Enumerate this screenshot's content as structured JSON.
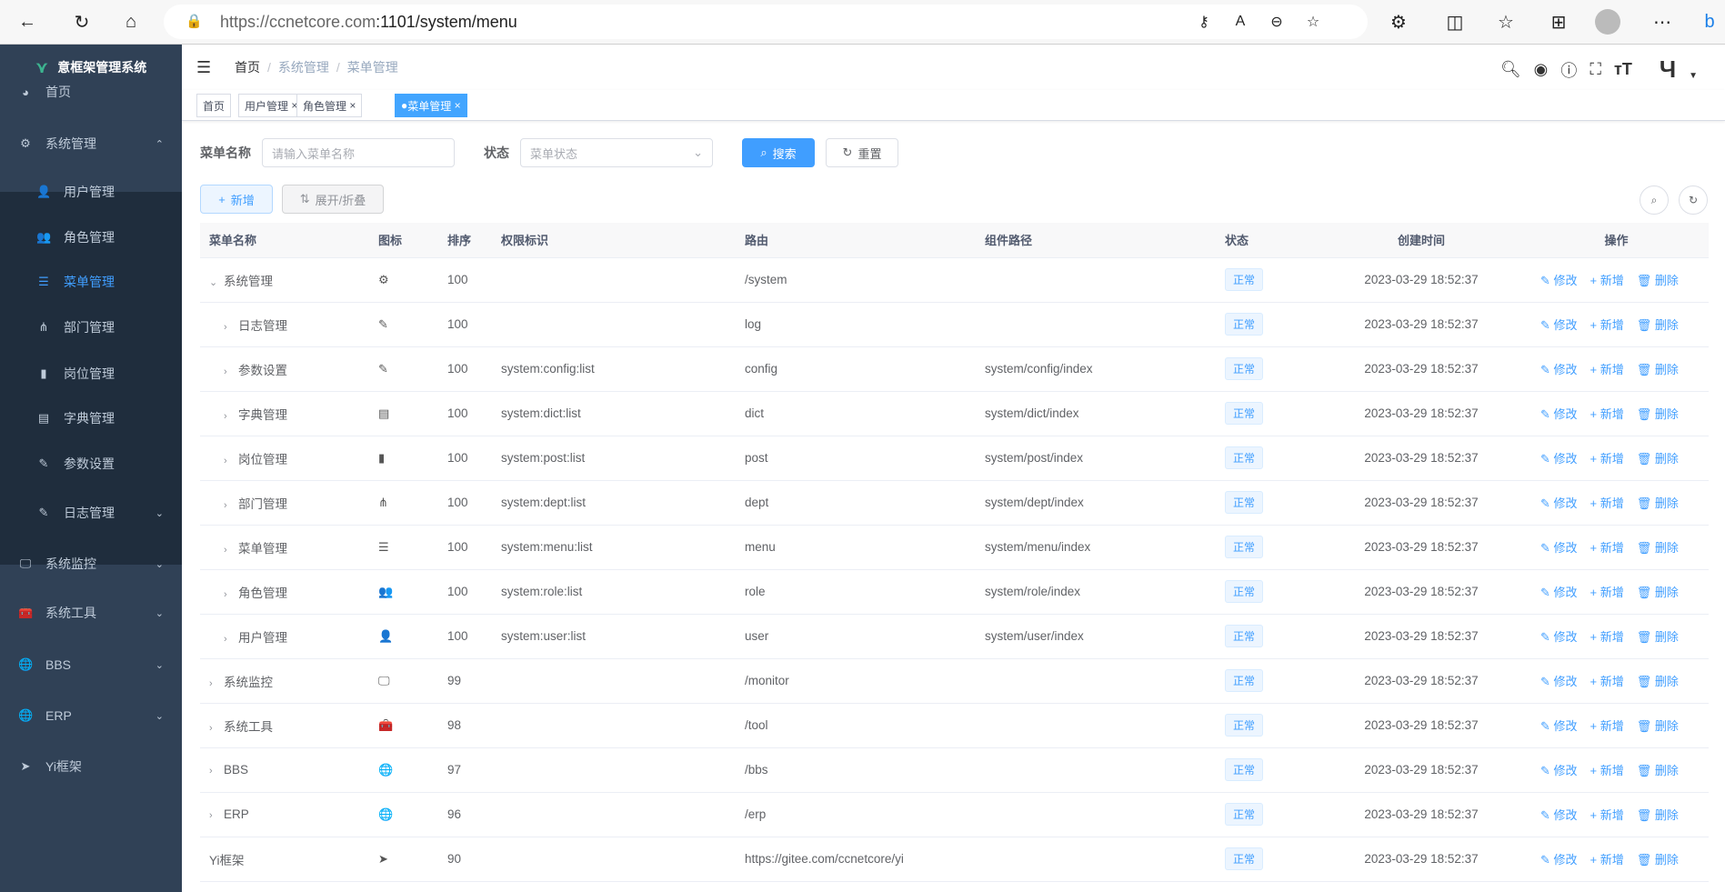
{
  "browser": {
    "url_host": "https://ccnetcore.com",
    "url_rest": ":1101/system/menu"
  },
  "sidebar": {
    "title": "意框架管理系统",
    "items": [
      {
        "label": "首页",
        "icon": "dashboard-icon"
      },
      {
        "label": "系统管理",
        "icon": "gear-icon"
      },
      {
        "label": "用户管理",
        "icon": "user-icon"
      },
      {
        "label": "角色管理",
        "icon": "peoples-icon"
      },
      {
        "label": "菜单管理",
        "icon": "tree-table-icon"
      },
      {
        "label": "部门管理",
        "icon": "tree-icon"
      },
      {
        "label": "岗位管理",
        "icon": "post-icon"
      },
      {
        "label": "字典管理",
        "icon": "dict-icon"
      },
      {
        "label": "参数设置",
        "icon": "edit-icon"
      },
      {
        "label": "日志管理",
        "icon": "log-icon"
      },
      {
        "label": "系统监控",
        "icon": "monitor-icon"
      },
      {
        "label": "系统工具",
        "icon": "tool-icon"
      },
      {
        "label": "BBS",
        "icon": "globe-icon"
      },
      {
        "label": "ERP",
        "icon": "globe-icon"
      },
      {
        "label": "Yi框架",
        "icon": "send-icon"
      }
    ]
  },
  "breadcrumb": [
    "首页",
    "系统管理",
    "菜单管理"
  ],
  "tags": [
    "首页",
    "用户管理",
    "角色管理",
    "菜单管理"
  ],
  "search": {
    "name_label": "菜单名称",
    "name_placeholder": "请输入菜单名称",
    "status_label": "状态",
    "status_placeholder": "菜单状态",
    "search": "搜索",
    "reset": "重置"
  },
  "toolbar": {
    "add": "新增",
    "expand": "展开/折叠"
  },
  "table": {
    "headers": [
      "菜单名称",
      "图标",
      "排序",
      "权限标识",
      "路由",
      "组件路径",
      "状态",
      "创建时间",
      "操作"
    ],
    "actions": [
      "修改",
      "新增",
      "删除"
    ],
    "rows": [
      {
        "name": "系统管理",
        "level": 0,
        "expand": "down",
        "icon": "⚙",
        "sort": "100",
        "perm": "",
        "route": "/system",
        "comp": "",
        "status": "正常",
        "time": "2023-03-29 18:52:37"
      },
      {
        "name": "日志管理",
        "level": 1,
        "expand": "right",
        "icon": "✎",
        "sort": "100",
        "perm": "",
        "route": "log",
        "comp": "",
        "status": "正常",
        "time": "2023-03-29 18:52:37"
      },
      {
        "name": "参数设置",
        "level": 1,
        "expand": "right",
        "icon": "✎",
        "sort": "100",
        "perm": "system:config:list",
        "route": "config",
        "comp": "system/config/index",
        "status": "正常",
        "time": "2023-03-29 18:52:37"
      },
      {
        "name": "字典管理",
        "level": 1,
        "expand": "right",
        "icon": "▤",
        "sort": "100",
        "perm": "system:dict:list",
        "route": "dict",
        "comp": "system/dict/index",
        "status": "正常",
        "time": "2023-03-29 18:52:37"
      },
      {
        "name": "岗位管理",
        "level": 1,
        "expand": "right",
        "icon": "▮",
        "sort": "100",
        "perm": "system:post:list",
        "route": "post",
        "comp": "system/post/index",
        "status": "正常",
        "time": "2023-03-29 18:52:37"
      },
      {
        "name": "部门管理",
        "level": 1,
        "expand": "right",
        "icon": "⋔",
        "sort": "100",
        "perm": "system:dept:list",
        "route": "dept",
        "comp": "system/dept/index",
        "status": "正常",
        "time": "2023-03-29 18:52:37"
      },
      {
        "name": "菜单管理",
        "level": 1,
        "expand": "right",
        "icon": "☰",
        "sort": "100",
        "perm": "system:menu:list",
        "route": "menu",
        "comp": "system/menu/index",
        "status": "正常",
        "time": "2023-03-29 18:52:37"
      },
      {
        "name": "角色管理",
        "level": 1,
        "expand": "right",
        "icon": "👥",
        "sort": "100",
        "perm": "system:role:list",
        "route": "role",
        "comp": "system/role/index",
        "status": "正常",
        "time": "2023-03-29 18:52:37"
      },
      {
        "name": "用户管理",
        "level": 1,
        "expand": "right",
        "icon": "👤",
        "sort": "100",
        "perm": "system:user:list",
        "route": "user",
        "comp": "system/user/index",
        "status": "正常",
        "time": "2023-03-29 18:52:37"
      },
      {
        "name": "系统监控",
        "level": 0,
        "expand": "right",
        "icon": "🖵",
        "sort": "99",
        "perm": "",
        "route": "/monitor",
        "comp": "",
        "status": "正常",
        "time": "2023-03-29 18:52:37"
      },
      {
        "name": "系统工具",
        "level": 0,
        "expand": "right",
        "icon": "🧰",
        "sort": "98",
        "perm": "",
        "route": "/tool",
        "comp": "",
        "status": "正常",
        "time": "2023-03-29 18:52:37"
      },
      {
        "name": "BBS",
        "level": 0,
        "expand": "right",
        "icon": "🌐",
        "sort": "97",
        "perm": "",
        "route": "/bbs",
        "comp": "",
        "status": "正常",
        "time": "2023-03-29 18:52:37"
      },
      {
        "name": "ERP",
        "level": 0,
        "expand": "right",
        "icon": "🌐",
        "sort": "96",
        "perm": "",
        "route": "/erp",
        "comp": "",
        "status": "正常",
        "time": "2023-03-29 18:52:37"
      },
      {
        "name": "Yi框架",
        "level": 0,
        "expand": "",
        "icon": "➤",
        "sort": "90",
        "perm": "",
        "route": "https://gitee.com/ccnetcore/yi",
        "comp": "",
        "status": "正常",
        "time": "2023-03-29 18:52:37"
      }
    ]
  },
  "colors": {
    "sidebar": "#304156",
    "submenu": "#1f2d3d",
    "primary": "#409eff"
  }
}
